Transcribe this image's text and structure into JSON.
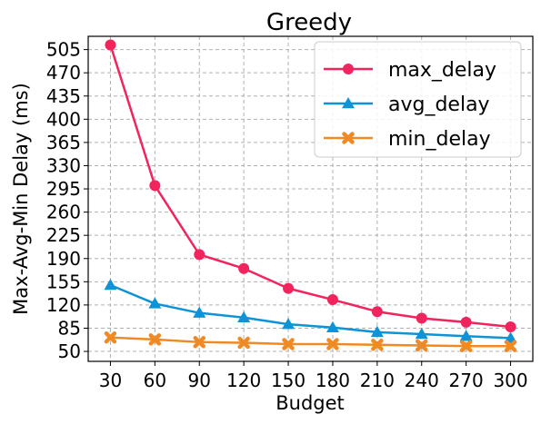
{
  "chart_data": {
    "type": "line",
    "title": "Greedy",
    "xlabel": "Budget",
    "ylabel": "Max-Avg-Min Delay (ms)",
    "x": [
      30,
      60,
      90,
      120,
      150,
      180,
      210,
      240,
      270,
      300
    ],
    "xlim": [
      15,
      315
    ],
    "ylim": [
      35,
      525
    ],
    "yticks": [
      50,
      85,
      120,
      155,
      190,
      225,
      260,
      295,
      330,
      365,
      400,
      435,
      470,
      505
    ],
    "grid": true,
    "legend_position": "top-right",
    "series": [
      {
        "name": "max_delay",
        "color": "#f2245e",
        "marker": "circle",
        "values": [
          512,
          300,
          196,
          175,
          145,
          128,
          110,
          100,
          94,
          87
        ]
      },
      {
        "name": "avg_delay",
        "color": "#0d93d6",
        "marker": "triangle",
        "values": [
          150,
          122,
          108,
          101,
          91,
          86,
          79,
          76,
          73,
          70
        ]
      },
      {
        "name": "min_delay",
        "color": "#f08a24",
        "marker": "x",
        "values": [
          71,
          68,
          64,
          63,
          61,
          61,
          60,
          59,
          58,
          58
        ]
      }
    ]
  }
}
